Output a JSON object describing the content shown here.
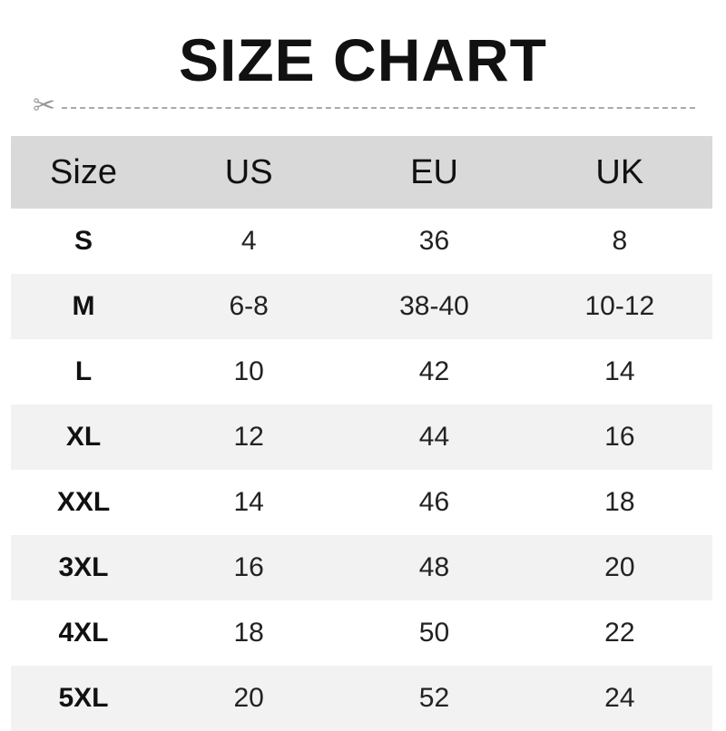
{
  "title": "SIZE CHART",
  "colors": {
    "header_bg": "#d9d9d9",
    "alt_row_bg": "#f2f2f2",
    "cut_line": "#aaaaaa"
  },
  "cut_icon": "scissors-icon",
  "headers": [
    "Size",
    "US",
    "EU",
    "UK"
  ],
  "rows": [
    [
      "S",
      "4",
      "36",
      "8"
    ],
    [
      "M",
      "6-8",
      "38-40",
      "10-12"
    ],
    [
      "L",
      "10",
      "42",
      "14"
    ],
    [
      "XL",
      "12",
      "44",
      "16"
    ],
    [
      "XXL",
      "14",
      "46",
      "18"
    ],
    [
      "3XL",
      "16",
      "48",
      "20"
    ],
    [
      "4XL",
      "18",
      "50",
      "22"
    ],
    [
      "5XL",
      "20",
      "52",
      "24"
    ]
  ]
}
